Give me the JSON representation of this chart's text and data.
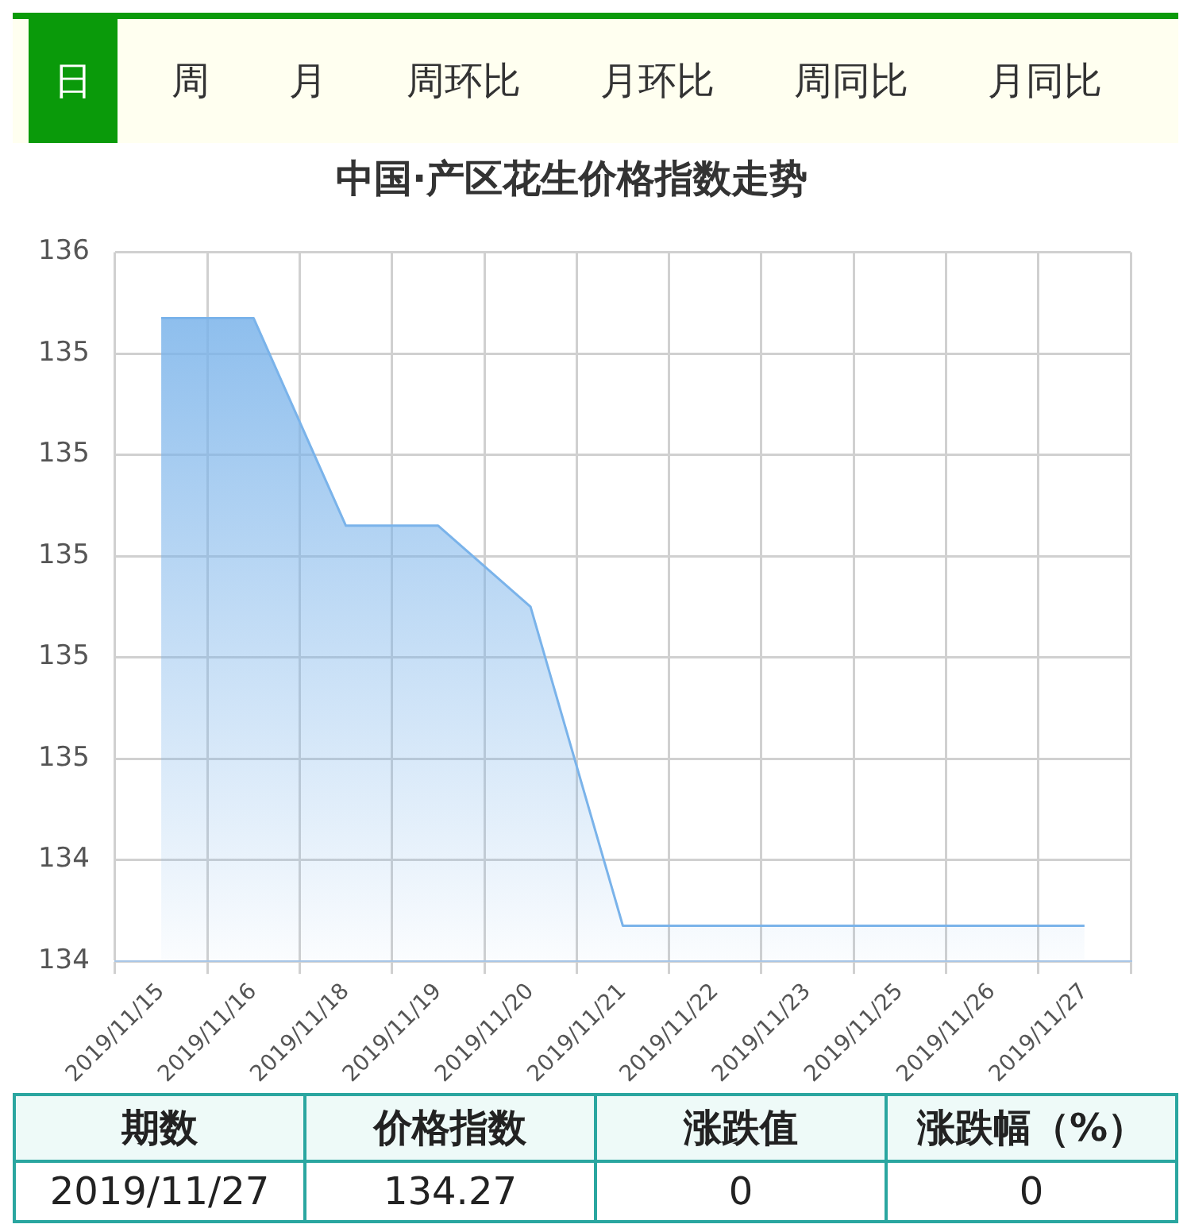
{
  "chart_data": {
    "type": "area",
    "title": "中国·产区花生价格指数走势",
    "categories": [
      "2019/11/15",
      "2019/11/16",
      "2019/11/18",
      "2019/11/19",
      "2019/11/20",
      "2019/11/21",
      "2019/11/22",
      "2019/11/23",
      "2019/11/25",
      "2019/11/26",
      "2019/11/27"
    ],
    "series": [
      {
        "color": "#7ab3ea",
        "values": [
          135.47,
          135.47,
          135.06,
          135.06,
          134.9,
          134.27,
          134.27,
          134.27,
          134.27,
          134.27,
          134.27
        ]
      }
    ],
    "ylim": [
      134.2,
      135.6
    ],
    "yticks": [
      {
        "value": 134.2,
        "label": "134"
      },
      {
        "value": 134.4,
        "label": "134"
      },
      {
        "value": 134.6,
        "label": "135"
      },
      {
        "value": 134.8,
        "label": "135"
      },
      {
        "value": 135.0,
        "label": "135"
      },
      {
        "value": 135.2,
        "label": "135"
      },
      {
        "value": 135.4,
        "label": "135"
      },
      {
        "value": 135.6,
        "label": "136"
      }
    ],
    "grid": true,
    "legend": false,
    "marker": "none",
    "annotations": [
      "日",
      "周",
      "月",
      "周环比",
      "月环比",
      "周同比",
      "月同比",
      "期数",
      "价格指数",
      "涨跌值",
      "涨跌幅（%）",
      "2019/11/27",
      "134.27",
      "0",
      "0"
    ]
  }
}
